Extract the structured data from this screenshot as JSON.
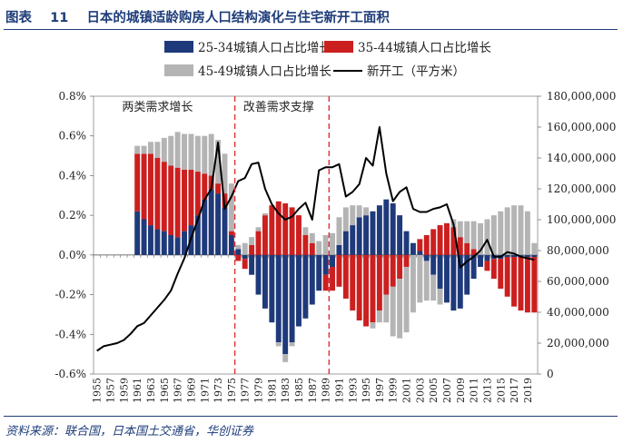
{
  "figure": {
    "label": "图表",
    "number": "11",
    "title": "日本的城镇适龄购房人口结构演化与住宅新开工面积",
    "source": "资料来源：联合国，日本国土交通省，华创证券"
  },
  "colors": {
    "s25": "#1f3a7a",
    "s35": "#cc1f1f",
    "s45": "#b4b4b4",
    "line": "#000000",
    "divider": "#e03030",
    "title": "#1f3d7a"
  },
  "chart_data": {
    "type": "bar+line",
    "years": [
      1955,
      1956,
      1957,
      1958,
      1959,
      1960,
      1961,
      1962,
      1963,
      1964,
      1965,
      1966,
      1967,
      1968,
      1969,
      1970,
      1971,
      1972,
      1973,
      1974,
      1975,
      1976,
      1977,
      1978,
      1979,
      1980,
      1981,
      1982,
      1983,
      1984,
      1985,
      1986,
      1987,
      1988,
      1989,
      1990,
      1991,
      1992,
      1993,
      1994,
      1995,
      1996,
      1997,
      1998,
      1999,
      2000,
      2001,
      2002,
      2003,
      2004,
      2005,
      2006,
      2007,
      2008,
      2009,
      2010,
      2011,
      2012,
      2013,
      2014,
      2015,
      2016,
      2017,
      2018,
      2019,
      2020
    ],
    "tick_years": [
      1955,
      1957,
      1959,
      1961,
      1963,
      1965,
      1967,
      1969,
      1971,
      1973,
      1975,
      1977,
      1979,
      1981,
      1983,
      1985,
      1987,
      1989,
      1991,
      1993,
      1995,
      1997,
      1999,
      2001,
      2003,
      2005,
      2007,
      2009,
      2011,
      2013,
      2015,
      2017,
      2019
    ],
    "left_axis": {
      "min": -0.6,
      "max": 0.8,
      "ticks": [
        "-0.6%",
        "-0.4%",
        "-0.2%",
        "0.0%",
        "0.2%",
        "0.4%",
        "0.6%",
        "0.8%"
      ],
      "tick_values": [
        -0.6,
        -0.4,
        -0.2,
        0,
        0.2,
        0.4,
        0.6,
        0.8
      ]
    },
    "right_axis": {
      "min": 0,
      "max": 180000000,
      "ticks": [
        "0",
        "20,000,000",
        "40,000,000",
        "60,000,000",
        "80,000,000",
        "100,000,000",
        "120,000,000",
        "140,000,000",
        "160,000,000",
        "180,000,000"
      ],
      "tick_values": [
        0,
        20000000,
        40000000,
        60000000,
        80000000,
        100000000,
        120000000,
        140000000,
        160000000,
        180000000
      ]
    },
    "series": [
      {
        "name": "25-34城镇人口占比增长",
        "kind": "bar",
        "color_key": "s25",
        "values": [
          null,
          null,
          null,
          null,
          null,
          null,
          0.22,
          0.18,
          0.15,
          0.13,
          0.12,
          0.1,
          0.09,
          0.12,
          0.15,
          0.2,
          0.28,
          0.33,
          0.31,
          0.24,
          0.1,
          0.03,
          -0.02,
          -0.1,
          -0.2,
          -0.27,
          -0.34,
          -0.44,
          -0.5,
          -0.44,
          -0.36,
          -0.32,
          -0.25,
          -0.18,
          -0.1,
          -0.06,
          0.05,
          0.12,
          0.15,
          0.19,
          0.2,
          0.22,
          0.25,
          0.28,
          0.26,
          0.2,
          0.12,
          0.06,
          0.02,
          -0.03,
          -0.1,
          -0.17,
          -0.24,
          -0.28,
          -0.27,
          -0.2,
          -0.12,
          -0.06,
          -0.03,
          -0.02,
          -0.02,
          -0.01,
          -0.01,
          -0.01,
          -0.01,
          -0.01
        ]
      },
      {
        "name": "35-44城镇人口占比增长",
        "kind": "bar",
        "color_key": "s35",
        "values": [
          null,
          null,
          null,
          null,
          null,
          null,
          0.29,
          0.33,
          0.36,
          0.36,
          0.35,
          0.35,
          0.35,
          0.31,
          0.28,
          0.22,
          0.13,
          0.07,
          0.05,
          0.07,
          0.02,
          -0.03,
          -0.05,
          0.05,
          0.12,
          0.2,
          0.25,
          0.27,
          0.26,
          0.24,
          0.2,
          0.1,
          0.06,
          0.0,
          -0.08,
          -0.12,
          -0.16,
          -0.22,
          -0.28,
          -0.33,
          -0.36,
          -0.34,
          -0.28,
          -0.2,
          -0.16,
          -0.12,
          -0.06,
          0.0,
          0.06,
          0.1,
          0.13,
          0.15,
          0.16,
          0.14,
          0.09,
          0.06,
          0.03,
          0.0,
          -0.05,
          -0.1,
          -0.15,
          -0.2,
          -0.25,
          -0.27,
          -0.28,
          -0.28
        ]
      },
      {
        "name": "45-49城镇人口占比增长",
        "kind": "bar",
        "color_key": "s45",
        "values": [
          null,
          null,
          null,
          null,
          null,
          null,
          0.04,
          0.04,
          0.06,
          0.08,
          0.12,
          0.15,
          0.18,
          0.18,
          0.18,
          0.18,
          0.19,
          0.21,
          0.22,
          0.2,
          0.24,
          0.02,
          0.06,
          0.04,
          0.02,
          0.01,
          0.0,
          -0.02,
          -0.04,
          -0.02,
          0.0,
          0.04,
          0.05,
          0.07,
          0.1,
          0.11,
          0.14,
          0.12,
          0.1,
          0.06,
          0.04,
          -0.03,
          -0.06,
          -0.14,
          -0.25,
          -0.3,
          -0.33,
          -0.29,
          -0.24,
          -0.2,
          -0.13,
          -0.08,
          0.0,
          0.04,
          0.08,
          0.11,
          0.14,
          0.16,
          0.18,
          0.2,
          0.22,
          0.24,
          0.25,
          0.25,
          0.22,
          0.06
        ]
      },
      {
        "name": "新开工（平方米）",
        "kind": "line",
        "color_key": "line",
        "axis": "right",
        "values": [
          15000000,
          18000000,
          19000000,
          20000000,
          22000000,
          26000000,
          31000000,
          33000000,
          38000000,
          43000000,
          48000000,
          54000000,
          65000000,
          75000000,
          88000000,
          100000000,
          113000000,
          120000000,
          150000000,
          107000000,
          115000000,
          125000000,
          127000000,
          136000000,
          137000000,
          120000000,
          110000000,
          104000000,
          100000000,
          102000000,
          107000000,
          111000000,
          100000000,
          132000000,
          134000000,
          134000000,
          136000000,
          115000000,
          118000000,
          123000000,
          140000000,
          135000000,
          160000000,
          130000000,
          112000000,
          118000000,
          121000000,
          107000000,
          105000000,
          105000000,
          107000000,
          108000000,
          110000000,
          97000000,
          69000000,
          73000000,
          76000000,
          80000000,
          87000000,
          76000000,
          76000000,
          79000000,
          78000000,
          76000000,
          75000000,
          74000000
        ]
      }
    ],
    "dividers": [
      1975,
      1989
    ],
    "annotations": [
      {
        "text": "两类需求增长",
        "year": 1964
      },
      {
        "text": "改善需求支撑",
        "year": 1982
      }
    ]
  }
}
